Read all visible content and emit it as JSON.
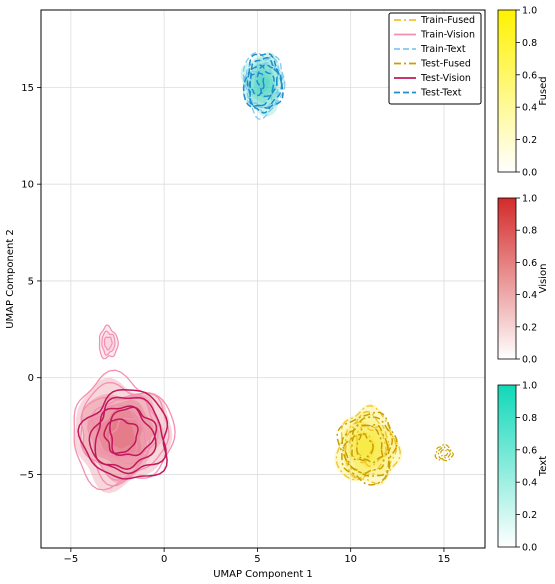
{
  "chart_data": [
    {
      "type": "density-contour",
      "xlabel": "UMAP Component 1",
      "ylabel": "UMAP Component 2",
      "xlim": [
        -6.6,
        17.2
      ],
      "ylim": [
        -8.8,
        19.0
      ],
      "xticks": [
        -5,
        0,
        5,
        10,
        15
      ],
      "yticks": [
        -5,
        0,
        5,
        10,
        15
      ],
      "grid": true,
      "legend_position": "top-right",
      "series": [
        {
          "name": "Train-Fused",
          "modality": "Fused",
          "split": "Train",
          "color": "#f2c12e",
          "dash": "7 3 2 3",
          "center": [
            10.9,
            -3.6
          ],
          "spread": [
            1.6,
            1.9
          ],
          "levels": 5
        },
        {
          "name": "Train-Vision",
          "modality": "Vision",
          "split": "Train",
          "color": "#f48fb1",
          "dash": "",
          "center": [
            -2.3,
            -2.8
          ],
          "spread": [
            2.7,
            2.8
          ],
          "levels": 6
        },
        {
          "name": "Train-Text",
          "modality": "Text",
          "split": "Train",
          "color": "#81c8f0",
          "dash": "6 3",
          "center": [
            5.3,
            15.2
          ],
          "spread": [
            1.1,
            1.6
          ],
          "levels": 5
        },
        {
          "name": "Test-Fused",
          "modality": "Fused",
          "split": "Test",
          "color": "#c8a000",
          "dash": "7 3 2 3",
          "center": [
            10.9,
            -3.6
          ],
          "spread": [
            1.5,
            1.8
          ],
          "levels": 5
        },
        {
          "name": "Test-Vision",
          "modality": "Vision",
          "split": "Test",
          "color": "#c2185b",
          "dash": "",
          "center": [
            -2.0,
            -3.0
          ],
          "spread": [
            2.3,
            2.3
          ],
          "levels": 5
        },
        {
          "name": "Test-Text",
          "modality": "Text",
          "split": "Test",
          "color": "#1e8fc8",
          "dash": "6 3",
          "center": [
            5.3,
            15.2
          ],
          "spread": [
            1.0,
            1.5
          ],
          "levels": 5
        }
      ],
      "fills": [
        {
          "modality": "Fused",
          "color": "#f5e400",
          "center": [
            10.9,
            -3.6
          ],
          "spread": [
            1.7,
            2.0
          ]
        },
        {
          "modality": "Vision",
          "color": "#d94a5a",
          "center": [
            -2.3,
            -2.9
          ],
          "spread": [
            2.6,
            2.7
          ]
        },
        {
          "modality": "Text",
          "color": "#20cfb0",
          "center": [
            5.3,
            15.2
          ],
          "spread": [
            1.1,
            1.6
          ]
        }
      ],
      "satellite_blobs": [
        {
          "modality": "Fused",
          "color": "#c8a000",
          "center": [
            15.0,
            -3.9
          ],
          "spread": [
            0.45,
            0.4
          ]
        },
        {
          "modality": "Vision",
          "color": "#f48fb1",
          "center": [
            -3.0,
            1.8
          ],
          "spread": [
            0.5,
            0.8
          ]
        }
      ]
    },
    {
      "type": "colorbar",
      "label": "Fused",
      "range": [
        0.0,
        1.0
      ],
      "ticks": [
        "0.0",
        "0.2",
        "0.4",
        "0.6",
        "0.8",
        "1.0"
      ],
      "color_low": "#ffffff",
      "color_high": "#fff200"
    },
    {
      "type": "colorbar",
      "label": "Vision",
      "range": [
        0.0,
        1.0
      ],
      "ticks": [
        "0.0",
        "0.2",
        "0.4",
        "0.6",
        "0.8",
        "1.0"
      ],
      "color_low": "#ffffff",
      "color_high": "#d42a2a"
    },
    {
      "type": "colorbar",
      "label": "Text",
      "range": [
        0.0,
        1.0
      ],
      "ticks": [
        "0.0",
        "0.2",
        "0.4",
        "0.6",
        "0.8",
        "1.0"
      ],
      "color_low": "#ffffff",
      "color_high": "#10d8b8"
    }
  ]
}
